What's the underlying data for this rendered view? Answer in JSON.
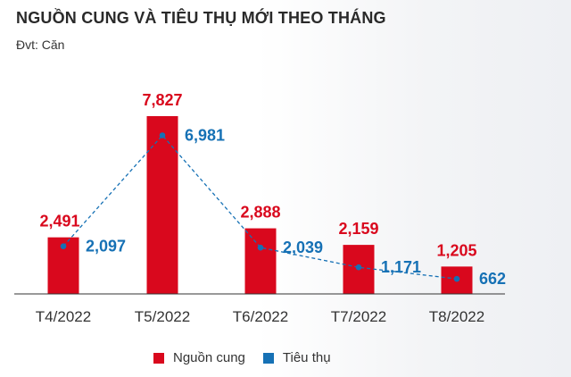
{
  "title": "NGUỒN CUNG VÀ TIÊU THỤ MỚI THEO THÁNG",
  "unit": "Đvt: Căn",
  "colors": {
    "supply": "#d9081d",
    "sales": "#1671b5",
    "axis": "#333333"
  },
  "chart_data": {
    "type": "bar",
    "categories": [
      "T4/2022",
      "T5/2022",
      "T6/2022",
      "T7/2022",
      "T8/2022"
    ],
    "series": [
      {
        "name": "Nguồn cung",
        "type": "bar",
        "values": [
          2491,
          7827,
          2888,
          2159,
          1205
        ],
        "labels": [
          "2,491",
          "7,827",
          "2,888",
          "2,159",
          "1,205"
        ]
      },
      {
        "name": "Tiêu thụ",
        "type": "line",
        "values": [
          2097,
          6981,
          2039,
          1171,
          662
        ],
        "labels": [
          "2,097",
          "6,981",
          "2,039",
          "1,171",
          "662"
        ]
      }
    ],
    "title": "NGUỒN CUNG VÀ TIÊU THỤ MỚI THEO THÁNG",
    "ylim": [
      0,
      7827
    ],
    "grid": false,
    "legend": "bottom"
  }
}
